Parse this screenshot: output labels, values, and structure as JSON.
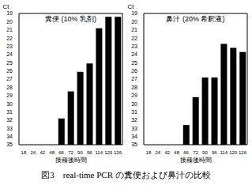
{
  "caption": "図3　real-time PCR の糞便および鼻汁の比較",
  "chart_data": [
    {
      "type": "bar",
      "title": "糞便 (10% 乳剤)",
      "x_label": "接種後時間",
      "y_label": "Ct",
      "categories": [
        "18",
        "24",
        "42",
        "48",
        "66",
        "72",
        "90",
        "96",
        "114",
        "120",
        "126"
      ],
      "values": [
        null,
        null,
        null,
        null,
        31.8,
        28.5,
        26.1,
        25.1,
        20.8,
        19.4,
        19.4
      ],
      "color": "#000000",
      "ylim": [
        35,
        19
      ],
      "yticks": [
        19,
        20,
        21,
        22,
        23,
        24,
        25,
        26,
        27,
        28,
        29,
        30,
        31,
        32,
        33,
        34,
        35
      ],
      "grid": false
    },
    {
      "type": "bar",
      "title": "鼻汁 (20% 希釈液)",
      "x_label": "接種後時間",
      "y_label": "Ct",
      "categories": [
        "18",
        "24",
        "42",
        "48",
        "66",
        "72",
        "90",
        "96",
        "114",
        "120",
        "126"
      ],
      "values": [
        null,
        null,
        null,
        null,
        32.6,
        29.2,
        26.8,
        26.8,
        22.7,
        23.2,
        23.7
      ],
      "color": "#000000",
      "ylim": [
        35,
        19
      ],
      "yticks": [
        19,
        20,
        21,
        22,
        23,
        24,
        25,
        26,
        27,
        28,
        29,
        30,
        31,
        32,
        33,
        34,
        35
      ],
      "grid": false
    }
  ]
}
